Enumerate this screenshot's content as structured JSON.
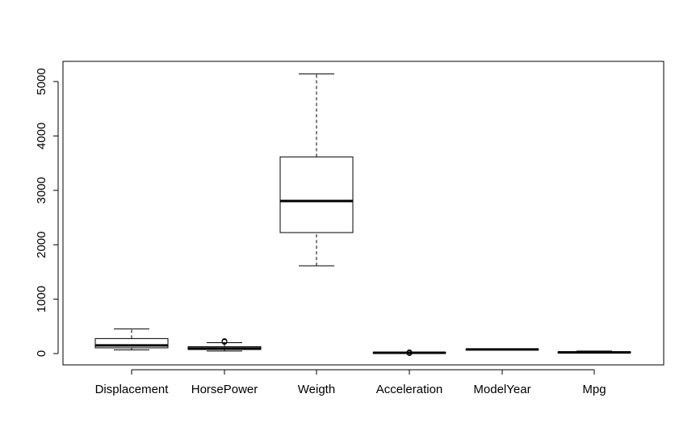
{
  "chart_data": {
    "type": "boxplot",
    "title": "",
    "xlabel": "",
    "ylabel": "",
    "ylim": [
      -220,
      5300
    ],
    "yticks": [
      0,
      1000,
      2000,
      3000,
      4000,
      5000
    ],
    "ytick_labels": [
      "0",
      "1000",
      "2000",
      "3000",
      "4000",
      "5000"
    ],
    "categories": [
      "Displacement",
      "HorsePower",
      "Weigth",
      "Acceleration",
      "ModelYear",
      "Mpg"
    ],
    "boxes": [
      {
        "name": "Displacement",
        "whisker_low": 68,
        "q1": 105,
        "median": 151,
        "q3": 276,
        "whisker_high": 455,
        "outliers": []
      },
      {
        "name": "HorsePower",
        "whisker_low": 46,
        "q1": 75,
        "median": 93,
        "q3": 126,
        "whisker_high": 200,
        "outliers": [
          215,
          225,
          230
        ]
      },
      {
        "name": "Weigth",
        "whisker_low": 1613,
        "q1": 2224,
        "median": 2804,
        "q3": 3615,
        "whisker_high": 5140,
        "outliers": []
      },
      {
        "name": "Acceleration",
        "whisker_low": 8,
        "q1": 14,
        "median": 15.5,
        "q3": 17,
        "whisker_high": 22,
        "outliers": [
          8,
          24.8
        ]
      },
      {
        "name": "ModelYear",
        "whisker_low": 70,
        "q1": 73,
        "median": 76,
        "q3": 79,
        "whisker_high": 82,
        "outliers": []
      },
      {
        "name": "Mpg",
        "whisker_low": 9,
        "q1": 17.5,
        "median": 23,
        "q3": 29,
        "whisker_high": 46.6,
        "outliers": []
      }
    ]
  }
}
